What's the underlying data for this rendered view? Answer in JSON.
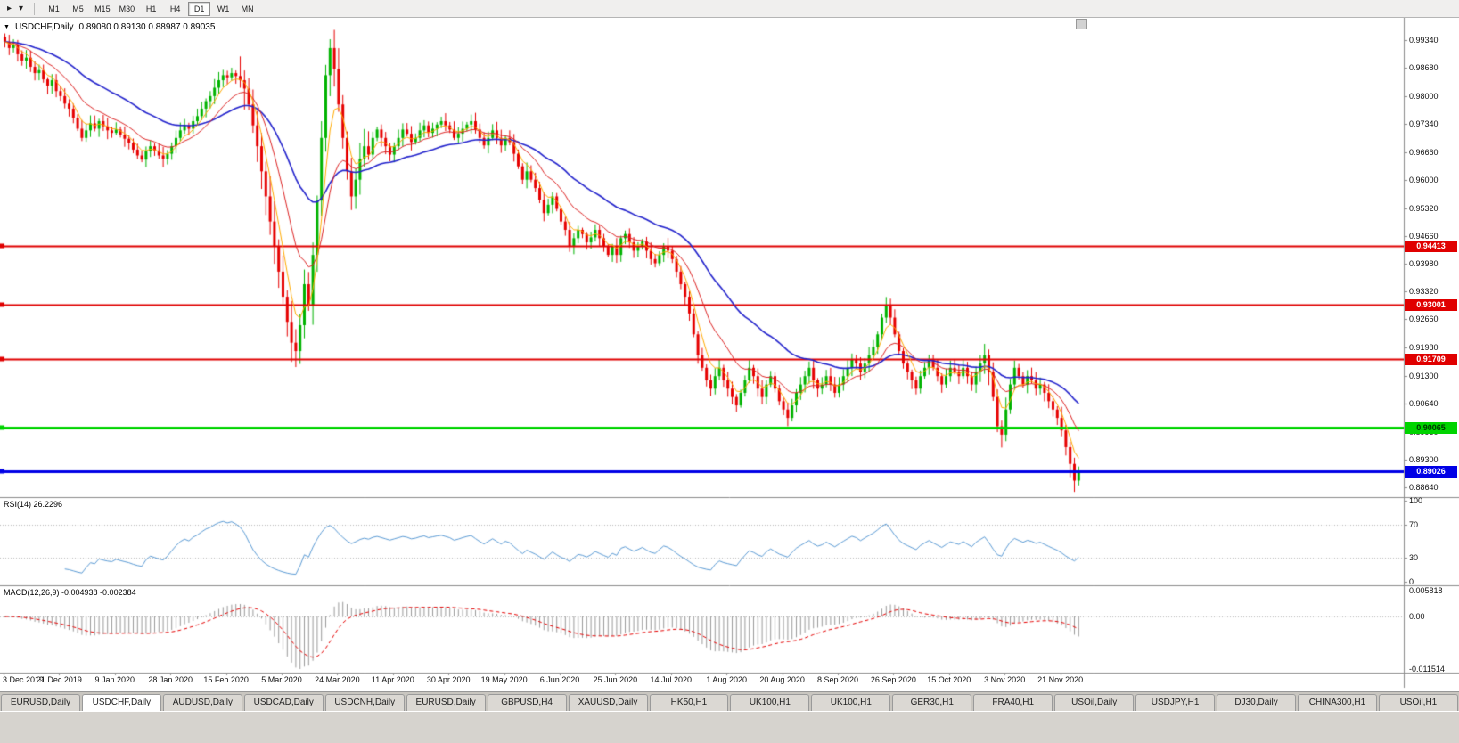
{
  "toolbar": {
    "timeframes": [
      "M1",
      "M5",
      "M15",
      "M30",
      "H1",
      "H4",
      "D1",
      "W1",
      "MN"
    ],
    "active_timeframe": "D1"
  },
  "chart": {
    "symbol": "USDCHF,Daily",
    "ohlc_readout": "0.89080 0.89130 0.88987 0.89035",
    "price_ticks": [
      "0.99340",
      "0.98680",
      "0.98000",
      "0.97340",
      "0.96660",
      "0.96000",
      "0.95320",
      "0.94660",
      "0.93980",
      "0.93320",
      "0.92660",
      "0.91980",
      "0.91300",
      "0.90640",
      "0.89960",
      "0.89300",
      "0.88640"
    ],
    "date_labels": [
      "3 Dec 2019",
      "21 Dec 2019",
      "9 Jan 2020",
      "28 Jan 2020",
      "15 Feb 2020",
      "5 Mar 2020",
      "24 Mar 2020",
      "11 Apr 2020",
      "30 Apr 2020",
      "19 May 2020",
      "6 Jun 2020",
      "25 Jun 2020",
      "14 Jul 2020",
      "1 Aug 2020",
      "20 Aug 2020",
      "8 Sep 2020",
      "26 Sep 2020",
      "15 Oct 2020",
      "3 Nov 2020",
      "21 Nov 2020"
    ],
    "levels": [
      {
        "label": "0.94413",
        "value": 0.94413,
        "color": "#e00000",
        "width": 2,
        "text_color": "#ffffff"
      },
      {
        "label": "0.93001",
        "value": 0.93001,
        "color": "#e00000",
        "width": 2,
        "text_color": "#ffffff"
      },
      {
        "label": "0.91709",
        "value": 0.91709,
        "color": "#e00000",
        "width": 2,
        "text_color": "#ffffff"
      },
      {
        "label": "0.90065",
        "value": 0.90065,
        "color": "#00d400",
        "width": 3,
        "text_color": "#003300"
      },
      {
        "label": "0.89026",
        "value": 0.89026,
        "color": "#0000e6",
        "width": 3,
        "text_color": "#ffffff"
      }
    ]
  },
  "rsi": {
    "label": "RSI(14) 26.2296",
    "ticks": [
      {
        "value": 100,
        "label": "100"
      },
      {
        "value": 70,
        "label": "70"
      },
      {
        "value": 30,
        "label": "30"
      },
      {
        "value": 0,
        "label": "0"
      }
    ],
    "guides": [
      70,
      30
    ]
  },
  "macd": {
    "label": "MACD(12,26,9) -0.004938 -0.002384",
    "ticks": {
      "top": "0.005818",
      "zero": "0.00",
      "bottom": "-0.011514"
    }
  },
  "tabs": {
    "active_index": 1,
    "items": [
      "EURUSD,Daily",
      "USDCHF,Daily",
      "AUDUSD,Daily",
      "USDCAD,Daily",
      "USDCNH,Daily",
      "EURUSD,Daily",
      "GBPUSD,H4",
      "XAUUSD,Daily",
      "HK50,H1",
      "UK100,H1",
      "UK100,H1",
      "GER30,H1",
      "FRA40,H1",
      "USOil,Daily",
      "USDJPY,H1",
      "DJ30,Daily",
      "CHINA300,H1",
      "USOil,H1"
    ]
  },
  "colors": {
    "up": "#00b300",
    "down": "#e60000",
    "ma_fast": "#ffaa00",
    "ma_mid": "#dd2222",
    "ma_slow": "#2222cc",
    "rsi": "#5b9bd5",
    "guide": "#b9b9b9",
    "macd_hist": "#9a9a9a",
    "macd_signal": "#e60000",
    "separator": "#8c8c8c",
    "axis_text": "#111111"
  },
  "chart_data": {
    "type": "candlestick",
    "title": "USDCHF,Daily",
    "symbol": "USDCHF",
    "timeframe": "Daily",
    "y_axis": {
      "min": 0.8864,
      "max": 0.9934
    },
    "last_ohlc": {
      "open": 0.8908,
      "high": 0.8913,
      "low": 0.88987,
      "close": 0.89035
    },
    "indicators": {
      "rsi_period": 14,
      "rsi_last": 26.2296,
      "macd_params": [
        12,
        26,
        9
      ],
      "macd_last": -0.004938,
      "macd_signal_last": -0.002384,
      "ma_periods": [
        5,
        13,
        34
      ]
    },
    "horizontal_levels": [
      0.94413,
      0.93001,
      0.91709,
      0.90065,
      0.89026
    ],
    "closes": [
      0.993,
      0.9915,
      0.9922,
      0.99,
      0.9885,
      0.9892,
      0.987,
      0.9855,
      0.9862,
      0.984,
      0.9825,
      0.9838,
      0.9812,
      0.98,
      0.9782,
      0.977,
      0.9748,
      0.9722,
      0.97,
      0.9718,
      0.9735,
      0.9722,
      0.974,
      0.9728,
      0.9718,
      0.9712,
      0.972,
      0.9708,
      0.9698,
      0.9688,
      0.9672,
      0.9658,
      0.9648,
      0.9668,
      0.968,
      0.967,
      0.9658,
      0.965,
      0.9662,
      0.968,
      0.97,
      0.9718,
      0.973,
      0.9722,
      0.974,
      0.9752,
      0.977,
      0.9788,
      0.98,
      0.982,
      0.9838,
      0.985,
      0.9845,
      0.9855,
      0.9848,
      0.9838,
      0.9818,
      0.978,
      0.973,
      0.968,
      0.962,
      0.956,
      0.95,
      0.944,
      0.938,
      0.932,
      0.926,
      0.921,
      0.919,
      0.9252,
      0.935,
      0.93,
      0.942,
      0.955,
      0.97,
      0.985,
      0.9915,
      0.9865,
      0.978,
      0.97,
      0.962,
      0.956,
      0.96,
      0.965,
      0.968,
      0.966,
      0.97,
      0.972,
      0.97,
      0.968,
      0.966,
      0.968,
      0.97,
      0.972,
      0.971,
      0.969,
      0.97,
      0.9718,
      0.973,
      0.9712,
      0.9722,
      0.9732,
      0.974,
      0.973,
      0.972,
      0.97,
      0.971,
      0.9722,
      0.9732,
      0.974,
      0.972,
      0.97,
      0.9682,
      0.97,
      0.9718,
      0.97,
      0.9682,
      0.97,
      0.969,
      0.9662,
      0.9632,
      0.96,
      0.962,
      0.96,
      0.958,
      0.9552,
      0.952,
      0.954,
      0.956,
      0.953,
      0.95,
      0.948,
      0.944,
      0.946,
      0.948,
      0.947,
      0.945,
      0.9462,
      0.948,
      0.946,
      0.944,
      0.942,
      0.944,
      0.942,
      0.946,
      0.947,
      0.945,
      0.943,
      0.944,
      0.9452,
      0.943,
      0.941,
      0.94,
      0.942,
      0.944,
      0.943,
      0.941,
      0.938,
      0.935,
      0.932,
      0.928,
      0.923,
      0.918,
      0.915,
      0.912,
      0.91,
      0.913,
      0.915,
      0.912,
      0.91,
      0.908,
      0.906,
      0.909,
      0.912,
      0.915,
      0.913,
      0.91,
      0.908,
      0.911,
      0.913,
      0.91,
      0.907,
      0.905,
      0.903,
      0.906,
      0.909,
      0.911,
      0.913,
      0.915,
      0.912,
      0.91,
      0.911,
      0.913,
      0.911,
      0.909,
      0.911,
      0.913,
      0.915,
      0.917,
      0.916,
      0.914,
      0.916,
      0.918,
      0.92,
      0.923,
      0.927,
      0.93,
      0.927,
      0.923,
      0.919,
      0.916,
      0.914,
      0.912,
      0.91,
      0.913,
      0.915,
      0.917,
      0.915,
      0.913,
      0.911,
      0.913,
      0.915,
      0.914,
      0.913,
      0.915,
      0.913,
      0.911,
      0.914,
      0.916,
      0.918,
      0.914,
      0.908,
      0.901,
      0.899,
      0.905,
      0.911,
      0.915,
      0.913,
      0.911,
      0.913,
      0.912,
      0.91,
      0.911,
      0.909,
      0.907,
      0.905,
      0.903,
      0.9,
      0.896,
      0.892,
      0.888,
      0.8904
    ]
  }
}
